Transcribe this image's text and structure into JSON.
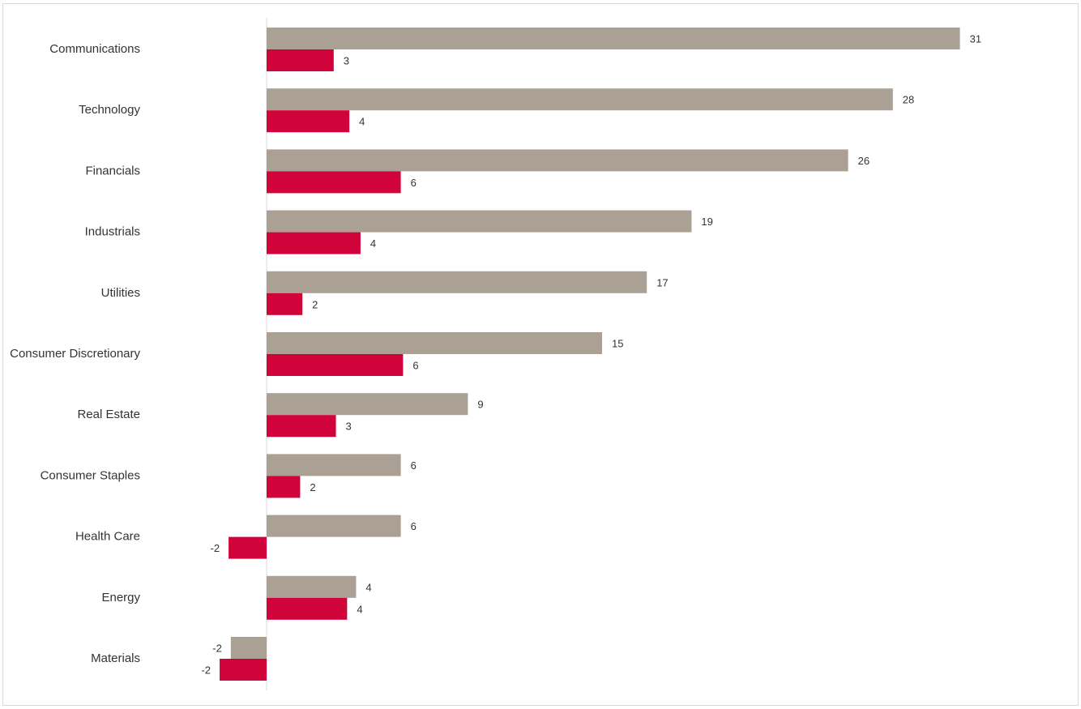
{
  "chart_data": {
    "type": "bar",
    "orientation": "horizontal",
    "categories": [
      "Communications",
      "Technology",
      "Financials",
      "Industrials",
      "Utilities",
      "Consumer Discretionary",
      "Real Estate",
      "Consumer Staples",
      "Health Care",
      "Energy",
      "Materials"
    ],
    "series": [
      {
        "values": [
          31,
          28,
          26,
          19,
          17,
          15,
          9,
          6,
          6,
          4,
          -1.6
        ],
        "labels": [
          "31",
          "28",
          "26",
          "19",
          "17",
          "15",
          "9",
          "6",
          "6",
          "4",
          "-2"
        ],
        "color": "#aba094"
      },
      {
        "values": [
          3,
          3.7,
          6,
          4.2,
          1.6,
          6.1,
          3.1,
          1.5,
          -1.7,
          3.6,
          -2.1
        ],
        "labels": [
          "3",
          "4",
          "6",
          "4",
          "2",
          "6",
          "3",
          "2",
          "-2",
          "4",
          "-2"
        ],
        "color": "#d0033b"
      }
    ],
    "title": "",
    "xlabel": "",
    "ylabel": "",
    "xlim": [
      -11.8,
      35
    ],
    "grid": false,
    "legend": "none",
    "data_labels": true
  }
}
